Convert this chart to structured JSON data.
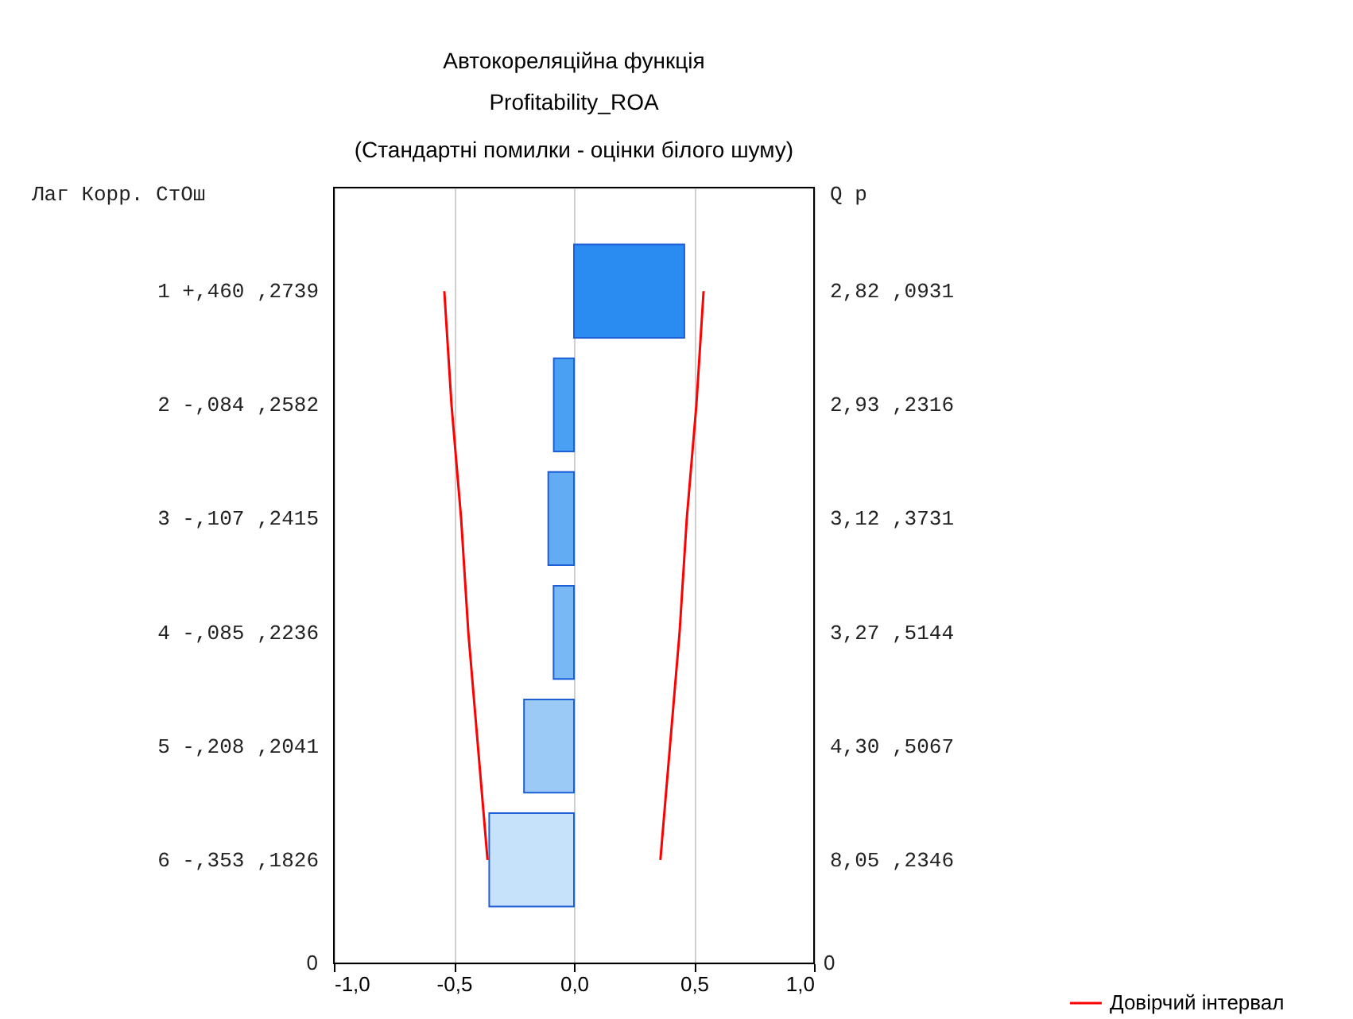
{
  "chart_data": {
    "type": "bar",
    "orientation": "horizontal",
    "title": "Автокореляційна функція",
    "subtitle": "Profitability_ROA",
    "categories": [
      "1   +,460 ,2739",
      "2   -,084 ,2582",
      "3   -,107 ,2415",
      "4   -,085 ,2236",
      "5   -,208 ,2041",
      "6   -,353 ,1826"
    ],
    "values": [
      0.46,
      -0.084,
      -0.107,
      -0.085,
      -0.208,
      -0.353
    ],
    "colors": [
      "#2a8cf0",
      "#4aa0f2",
      "#62acf3",
      "#78b8f4",
      "#9ccaf6",
      "#c6e1fa"
    ],
    "series": [
      {
        "type": "line",
        "name": "Довірчий інтервал",
        "color": "#ff0000",
        "values": [
          -0.54,
          -0.51,
          -0.47,
          -0.44,
          -0.4,
          -0.36
        ]
      },
      {
        "type": "line",
        "color": "#ff0000",
        "values": [
          0.54,
          0.51,
          0.47,
          0.44,
          0.4,
          0.36
        ]
      }
    ],
    "xlim": [
      -1,
      1
    ],
    "xticks": [
      {
        "value": -1,
        "label": "-1,0"
      },
      {
        "value": -0.5,
        "label": "-0,5"
      },
      {
        "value": 0,
        "label": "0,0"
      },
      {
        "value": 0.5,
        "label": "0,5"
      },
      {
        "value": 1,
        "label": "1,0"
      }
    ],
    "grid": "x",
    "legend": "bottom right",
    "annotations": [
      "(Стандартні помилки - оцінки білого шуму)",
      "Лаг   Корр. СтОш",
      "Q   p",
      "0",
      "0",
      "2,82 ,0931",
      "2,93 ,2316",
      "3,12 ,3731",
      "3,27 ,5144",
      "4,30 ,5067",
      "8,05 ,2346"
    ]
  }
}
